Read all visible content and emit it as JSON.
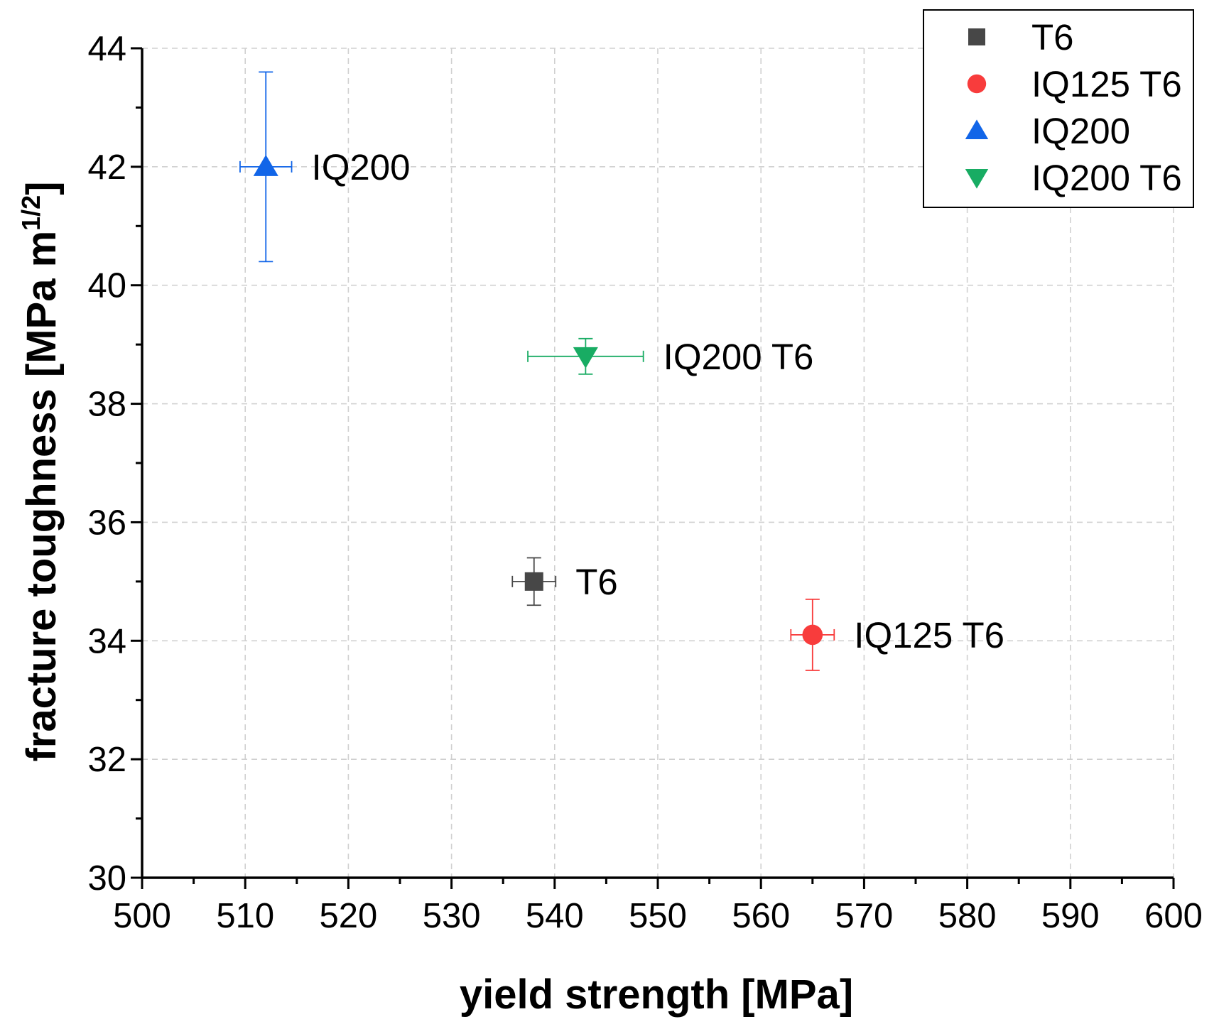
{
  "chart_data": {
    "type": "scatter",
    "xlabel": "yield strength [MPa]",
    "ylabel_main": "fracture toughness [MPa m",
    "ylabel_sup": "1/2",
    "ylabel_close": "]",
    "xlim": [
      500,
      600
    ],
    "ylim": [
      30,
      44
    ],
    "x_ticks": [
      500,
      510,
      520,
      530,
      540,
      550,
      560,
      570,
      580,
      590,
      600
    ],
    "y_ticks": [
      30,
      32,
      34,
      36,
      38,
      40,
      42,
      44
    ],
    "x_minor_step": 5,
    "y_minor_step": 1,
    "grid": true,
    "legend_position": "top-right",
    "series": [
      {
        "name": "T6",
        "label": "T6",
        "marker": "square",
        "color": "#474747",
        "x": 538,
        "y": 35.0,
        "x_err": 2.1,
        "y_err": 0.4
      },
      {
        "name": "IQ125 T6",
        "label": "IQ125 T6",
        "marker": "circle",
        "color": "#f83c3c",
        "x": 565,
        "y": 34.1,
        "x_err": 2.1,
        "y_err": 0.6
      },
      {
        "name": "IQ200",
        "label": "IQ200",
        "marker": "triangle-up",
        "color": "#1165e8",
        "x": 512,
        "y": 42.0,
        "x_err": 2.5,
        "y_err": 1.6
      },
      {
        "name": "IQ200 T6",
        "label": "IQ200 T6",
        "marker": "triangle-down",
        "color": "#18ac63",
        "x": 543,
        "y": 38.8,
        "x_err": 5.6,
        "y_err": 0.3
      }
    ]
  }
}
